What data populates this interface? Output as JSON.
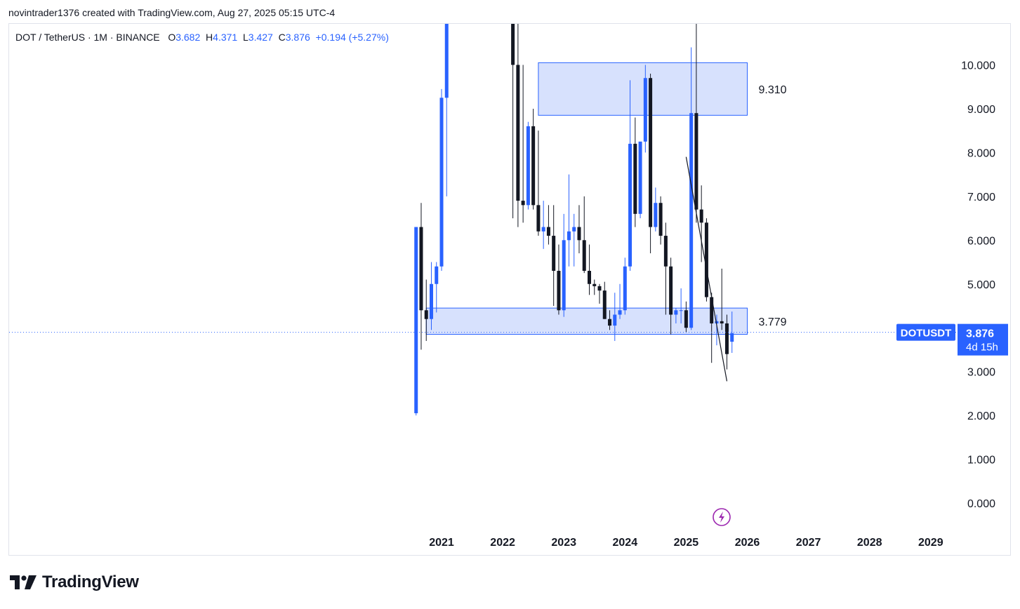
{
  "header": {
    "text": "novintrader1376 created with TradingView.com, Aug 27, 2025 05:15 UTC-4"
  },
  "legend": {
    "symbol": "DOT / TetherUS · 1M · BINANCE",
    "o_label": "O",
    "o_value": "3.682",
    "h_label": "H",
    "h_value": "4.371",
    "l_label": "L",
    "l_value": "3.427",
    "c_label": "C",
    "c_value": "3.876",
    "change": "+0.194 (+5.27%)"
  },
  "colors": {
    "up": "#2962ff",
    "down": "#131722",
    "zone_fill": "#d0dcfd",
    "zone_border": "#2962ff",
    "accent": "#2962ff",
    "lightning": "#9c27b0"
  },
  "icons": {
    "lightning": "lightning-icon",
    "logo": "tradingview-logo-icon"
  },
  "footer": {
    "brand": "TradingView"
  },
  "chart_data": {
    "type": "candlestick",
    "symbol": "DOTUSDT",
    "interval": "1M",
    "x_axis": {
      "ticks": [
        "2021",
        "2022",
        "2023",
        "2024",
        "2025",
        "2026",
        "2027",
        "2028",
        "2029"
      ]
    },
    "y_axis": {
      "ticks": [
        "10.000",
        "9.000",
        "8.000",
        "7.000",
        "6.000",
        "5.000",
        "4.000",
        "3.000",
        "2.000",
        "1.000",
        "0.000"
      ],
      "range": [
        -0.3,
        10.9
      ]
    },
    "last_price": {
      "symbol": "DOTUSDT",
      "value": "3.876",
      "countdown": "4d 15h"
    },
    "zones": [
      {
        "label": "9.310",
        "from": "2022-08",
        "to": "2026-01",
        "low": 8.85,
        "high": 10.05
      },
      {
        "label": "3.779",
        "from": "2020-10",
        "to": "2026-01",
        "low": 3.85,
        "high": 4.45
      }
    ],
    "trendline": {
      "from": {
        "date": "2025-01",
        "price": 7.9
      },
      "to": {
        "date": "2025-09",
        "price": 2.78
      }
    },
    "candles": [
      {
        "d": "2020-08",
        "o": 2.05,
        "h": 6.3,
        "l": 2.0,
        "c": 6.3
      },
      {
        "d": "2020-09",
        "o": 6.3,
        "h": 6.85,
        "l": 3.5,
        "c": 4.4
      },
      {
        "d": "2020-10",
        "o": 4.4,
        "h": 5.1,
        "l": 3.7,
        "c": 4.2
      },
      {
        "d": "2020-11",
        "o": 4.2,
        "h": 5.5,
        "l": 3.95,
        "c": 5.0
      },
      {
        "d": "2020-12",
        "o": 5.0,
        "h": 5.5,
        "l": 4.35,
        "c": 5.4
      },
      {
        "d": "2021-01",
        "o": 5.4,
        "h": 9.45,
        "l": 5.3,
        "c": 9.25
      },
      {
        "d": "2021-02",
        "o": 9.25,
        "h": 11.5,
        "l": 7.0,
        "c": 11.0
      }
    ],
    "candles_2": [
      {
        "d": "2022-03",
        "o": 15.0,
        "h": 15.5,
        "l": 6.5,
        "c": 10.0
      },
      {
        "d": "2022-04",
        "o": 10.0,
        "h": 11.0,
        "l": 6.3,
        "c": 6.9
      },
      {
        "d": "2022-05",
        "o": 6.9,
        "h": 10.0,
        "l": 6.4,
        "c": 6.8
      },
      {
        "d": "2022-06",
        "o": 6.8,
        "h": 8.7,
        "l": 6.7,
        "c": 8.6
      },
      {
        "d": "2022-07",
        "o": 8.6,
        "h": 9.0,
        "l": 6.7,
        "c": 6.8
      },
      {
        "d": "2022-08",
        "o": 6.8,
        "h": 8.5,
        "l": 6.1,
        "c": 6.2
      },
      {
        "d": "2022-09",
        "o": 6.2,
        "h": 6.9,
        "l": 5.8,
        "c": 6.3
      },
      {
        "d": "2022-10",
        "o": 6.3,
        "h": 6.8,
        "l": 5.9,
        "c": 6.1
      },
      {
        "d": "2022-11",
        "o": 6.1,
        "h": 6.8,
        "l": 4.5,
        "c": 5.3
      },
      {
        "d": "2022-12",
        "o": 5.3,
        "h": 5.9,
        "l": 4.3,
        "c": 4.4
      },
      {
        "d": "2023-01",
        "o": 4.4,
        "h": 6.6,
        "l": 4.25,
        "c": 6.0
      },
      {
        "d": "2023-02",
        "o": 6.0,
        "h": 7.5,
        "l": 5.4,
        "c": 6.2
      },
      {
        "d": "2023-03",
        "o": 6.2,
        "h": 6.6,
        "l": 5.4,
        "c": 6.3
      },
      {
        "d": "2023-04",
        "o": 6.3,
        "h": 6.8,
        "l": 5.7,
        "c": 6.0
      },
      {
        "d": "2023-05",
        "o": 6.0,
        "h": 7.0,
        "l": 5.25,
        "c": 5.3
      },
      {
        "d": "2023-06",
        "o": 5.3,
        "h": 5.9,
        "l": 4.75,
        "c": 5.0
      },
      {
        "d": "2023-07",
        "o": 5.0,
        "h": 5.1,
        "l": 4.75,
        "c": 4.95
      },
      {
        "d": "2023-08",
        "o": 4.95,
        "h": 5.0,
        "l": 4.55,
        "c": 4.85
      },
      {
        "d": "2023-09",
        "o": 4.85,
        "h": 5.05,
        "l": 4.2,
        "c": 4.2
      },
      {
        "d": "2023-10",
        "o": 4.2,
        "h": 4.4,
        "l": 3.95,
        "c": 4.05
      },
      {
        "d": "2023-11",
        "o": 4.05,
        "h": 4.8,
        "l": 3.7,
        "c": 4.3
      },
      {
        "d": "2023-12",
        "o": 4.3,
        "h": 5.0,
        "l": 4.2,
        "c": 4.4
      },
      {
        "d": "2024-01",
        "o": 4.4,
        "h": 5.6,
        "l": 4.3,
        "c": 5.4
      },
      {
        "d": "2024-02",
        "o": 5.4,
        "h": 9.65,
        "l": 5.3,
        "c": 8.2
      },
      {
        "d": "2024-03",
        "o": 8.2,
        "h": 8.8,
        "l": 6.3,
        "c": 6.6
      },
      {
        "d": "2024-04",
        "o": 6.6,
        "h": 8.2,
        "l": 6.5,
        "c": 8.25
      },
      {
        "d": "2024-05",
        "o": 8.25,
        "h": 10.0,
        "l": 8.0,
        "c": 9.7
      },
      {
        "d": "2024-06",
        "o": 9.7,
        "h": 9.8,
        "l": 5.7,
        "c": 6.3
      },
      {
        "d": "2024-07",
        "o": 6.3,
        "h": 7.2,
        "l": 6.2,
        "c": 6.85
      },
      {
        "d": "2024-08",
        "o": 6.85,
        "h": 7.0,
        "l": 5.9,
        "c": 6.1
      },
      {
        "d": "2024-09",
        "o": 6.1,
        "h": 6.4,
        "l": 4.3,
        "c": 5.4
      },
      {
        "d": "2024-10",
        "o": 5.4,
        "h": 5.6,
        "l": 3.85,
        "c": 4.3
      },
      {
        "d": "2024-11",
        "o": 4.3,
        "h": 4.45,
        "l": 4.1,
        "c": 4.4
      },
      {
        "d": "2024-12",
        "o": 4.4,
        "h": 4.9,
        "l": 4.1,
        "c": 4.4
      },
      {
        "d": "2025-01",
        "o": 4.4,
        "h": 4.6,
        "l": 3.9,
        "c": 4.0
      },
      {
        "d": "2025-02",
        "o": 4.0,
        "h": 10.4,
        "l": 3.95,
        "c": 8.9
      },
      {
        "d": "2025-03",
        "o": 8.9,
        "h": 10.95,
        "l": 6.4,
        "c": 6.7
      },
      {
        "d": "2025-04",
        "o": 6.7,
        "h": 7.25,
        "l": 5.5,
        "c": 6.4
      },
      {
        "d": "2025-05",
        "o": 6.4,
        "h": 6.5,
        "l": 4.6,
        "c": 4.7
      },
      {
        "d": "2025-06",
        "o": 4.7,
        "h": 4.8,
        "l": 3.2,
        "c": 4.1
      },
      {
        "d": "2025-07",
        "o": 4.1,
        "h": 4.3,
        "l": 3.6,
        "c": 4.15
      },
      {
        "d": "2025-08",
        "o": 4.15,
        "h": 5.35,
        "l": 3.95,
        "c": 4.1
      },
      {
        "d": "2025-09",
        "o": 4.1,
        "h": 4.3,
        "l": 3.05,
        "c": 3.4
      },
      {
        "d": "2025-10",
        "o": 3.682,
        "h": 4.371,
        "l": 3.427,
        "c": 3.876
      }
    ],
    "price_labels": []
  }
}
